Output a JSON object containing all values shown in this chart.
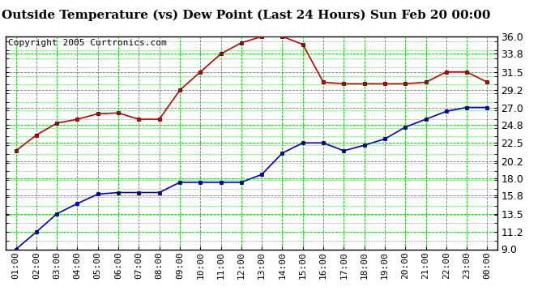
{
  "title": "Outside Temperature (vs) Dew Point (Last 24 Hours) Sun Feb 20 00:00",
  "copyright": "Copyright 2005 Curtronics.com",
  "background_color": "#ffffff",
  "plot_bg_color": "#ffffff",
  "grid_color": "#00cc00",
  "x_labels": [
    "01:00",
    "02:00",
    "03:00",
    "04:00",
    "05:00",
    "06:00",
    "07:00",
    "08:00",
    "09:00",
    "10:00",
    "11:00",
    "12:00",
    "13:00",
    "14:00",
    "15:00",
    "16:00",
    "17:00",
    "18:00",
    "19:00",
    "20:00",
    "21:00",
    "22:00",
    "23:00",
    "00:00"
  ],
  "y_ticks": [
    9.0,
    11.2,
    13.5,
    15.8,
    18.0,
    20.2,
    22.5,
    24.8,
    27.0,
    29.2,
    31.5,
    33.8,
    36.0
  ],
  "ylim": [
    9.0,
    36.0
  ],
  "red_data": [
    21.5,
    23.5,
    25.0,
    25.5,
    26.2,
    26.3,
    25.5,
    25.5,
    29.2,
    31.5,
    33.8,
    35.2,
    36.0,
    36.0,
    35.0,
    30.2,
    30.0,
    30.0,
    30.0,
    30.0,
    30.2,
    31.5,
    31.5,
    30.2
  ],
  "blue_data": [
    9.0,
    11.2,
    13.5,
    14.8,
    16.0,
    16.2,
    16.2,
    16.2,
    17.5,
    17.5,
    17.5,
    17.5,
    18.5,
    21.2,
    22.5,
    22.5,
    21.5,
    22.2,
    23.0,
    24.5,
    25.5,
    26.5,
    27.0,
    27.0
  ],
  "red_color": "#cc0000",
  "blue_color": "#0000cc",
  "title_fontsize": 11,
  "copyright_fontsize": 8,
  "tick_fontsize": 8,
  "ytick_fontsize": 9
}
